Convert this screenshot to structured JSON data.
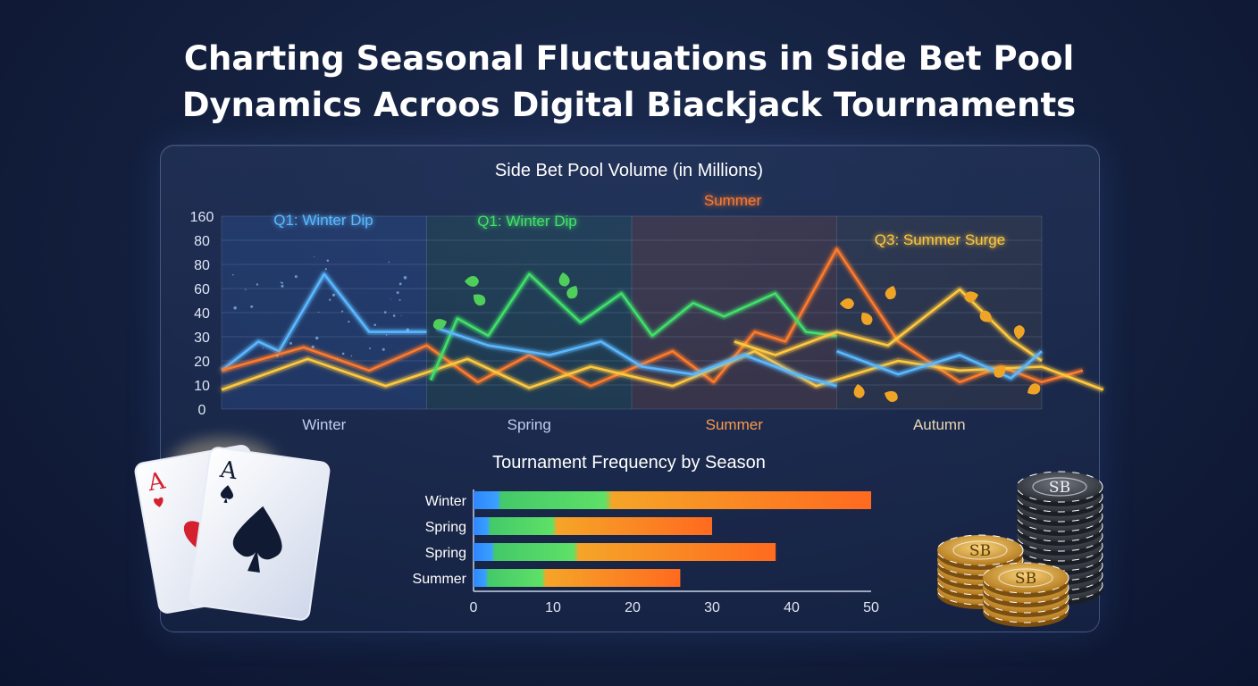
{
  "title": {
    "line1": "Charting Seasonal Fluctuations in Side Bet Pool",
    "line2": "Dynamics Acroos Digital Biackjack Tournaments"
  },
  "colors": {
    "blue": "#5ab8ff",
    "green": "#3fe06a",
    "orange": "#ff7a2a",
    "yellow": "#ffc83d",
    "gold": "#e8a72c"
  },
  "chart_data": [
    {
      "type": "line",
      "title": "Side Bet Pool Volume (in Millions)",
      "y_tick_labels": [
        "0",
        "10",
        "20",
        "30",
        "40",
        "60",
        "80",
        "80",
        "160"
      ],
      "season_labels": [
        "Winter",
        "Spring",
        "Summer",
        "Autumn"
      ],
      "annotations": [
        {
          "text": "Q1: Winter Dip",
          "color": "#5ab8ff"
        },
        {
          "text": "Q1: Winter Dip",
          "color": "#3fe06a"
        },
        {
          "text": "Summer",
          "color": "#ff7a2a"
        },
        {
          "text": "Q3: Summer Surge",
          "color": "#ffc83d"
        }
      ],
      "grid": true,
      "series": [
        {
          "color": "#5ab8ff",
          "points": [
            [
              0,
              20
            ],
            [
              0.18,
              35
            ],
            [
              0.28,
              30
            ],
            [
              0.5,
              70
            ],
            [
              0.72,
              40
            ],
            [
              0.9,
              40
            ],
            [
              1.0,
              40
            ]
          ],
          "segment": 0
        },
        {
          "color": "#ff7a2a",
          "points": [
            [
              0,
              20
            ],
            [
              0.4,
              32
            ],
            [
              0.72,
              20
            ],
            [
              1.0,
              33
            ],
            [
              1.25,
              14
            ],
            [
              1.5,
              28
            ],
            [
              1.8,
              12
            ],
            [
              2.2,
              30
            ],
            [
              2.4,
              14
            ],
            [
              2.6,
              40
            ],
            [
              2.75,
              35
            ],
            [
              3.0,
              83
            ],
            [
              3.3,
              35
            ],
            [
              3.6,
              14
            ],
            [
              3.8,
              22
            ],
            [
              4.0,
              14
            ],
            [
              4.2,
              20
            ]
          ],
          "segment": 0
        },
        {
          "color": "#ffc83d",
          "points": [
            [
              0,
              10
            ],
            [
              0.42,
              26
            ],
            [
              0.8,
              12
            ],
            [
              1.2,
              26
            ],
            [
              1.5,
              11
            ],
            [
              1.8,
              22
            ],
            [
              2.2,
              12
            ],
            [
              2.6,
              30
            ],
            [
              2.9,
              12
            ],
            [
              3.3,
              25
            ],
            [
              3.6,
              20
            ],
            [
              4.0,
              22
            ],
            [
              4.3,
              10
            ]
          ],
          "segment": 0
        },
        {
          "color": "#3fe06a",
          "points": [
            [
              1.02,
              15
            ],
            [
              1.15,
              47
            ],
            [
              1.3,
              38
            ],
            [
              1.5,
              70
            ],
            [
              1.75,
              45
            ],
            [
              1.95,
              60
            ],
            [
              2.1,
              38
            ],
            [
              2.3,
              55
            ],
            [
              2.45,
              48
            ],
            [
              2.7,
              60
            ],
            [
              2.85,
              40
            ],
            [
              3.0,
              38
            ]
          ],
          "segment": 1
        },
        {
          "color": "#ffc83d",
          "points": [
            [
              2.5,
              35
            ],
            [
              2.7,
              28
            ],
            [
              3.0,
              40
            ],
            [
              3.25,
              33
            ],
            [
              3.6,
              62
            ],
            [
              3.85,
              36
            ],
            [
              4.0,
              25
            ]
          ],
          "segment": 1
        },
        {
          "color": "#5ab8ff",
          "points": [
            [
              1.05,
              42
            ],
            [
              1.3,
              33
            ],
            [
              1.6,
              28
            ],
            [
              1.85,
              35
            ],
            [
              2.05,
              22
            ],
            [
              2.3,
              18
            ],
            [
              2.55,
              28
            ],
            [
              2.8,
              18
            ],
            [
              3.0,
              12
            ]
          ],
          "segment": 1
        },
        {
          "color": "#5ab8ff",
          "points": [
            [
              3.0,
              30
            ],
            [
              3.3,
              18
            ],
            [
              3.6,
              28
            ],
            [
              3.85,
              16
            ],
            [
              4.0,
              30
            ]
          ],
          "segment": 2
        }
      ]
    },
    {
      "type": "bar",
      "title": "Tournament Frequency by Season",
      "categories": [
        "Winter",
        "Spring",
        "Spring",
        "Summer"
      ],
      "x_ticks": [
        0,
        10,
        20,
        30,
        40,
        50
      ],
      "xlim": [
        0,
        50
      ],
      "values": [
        50,
        30,
        38,
        26
      ]
    }
  ],
  "cards": [
    {
      "rank": "A",
      "suit": "heart"
    },
    {
      "rank": "A",
      "suit": "spade"
    }
  ],
  "chips": {
    "label": "SB"
  }
}
